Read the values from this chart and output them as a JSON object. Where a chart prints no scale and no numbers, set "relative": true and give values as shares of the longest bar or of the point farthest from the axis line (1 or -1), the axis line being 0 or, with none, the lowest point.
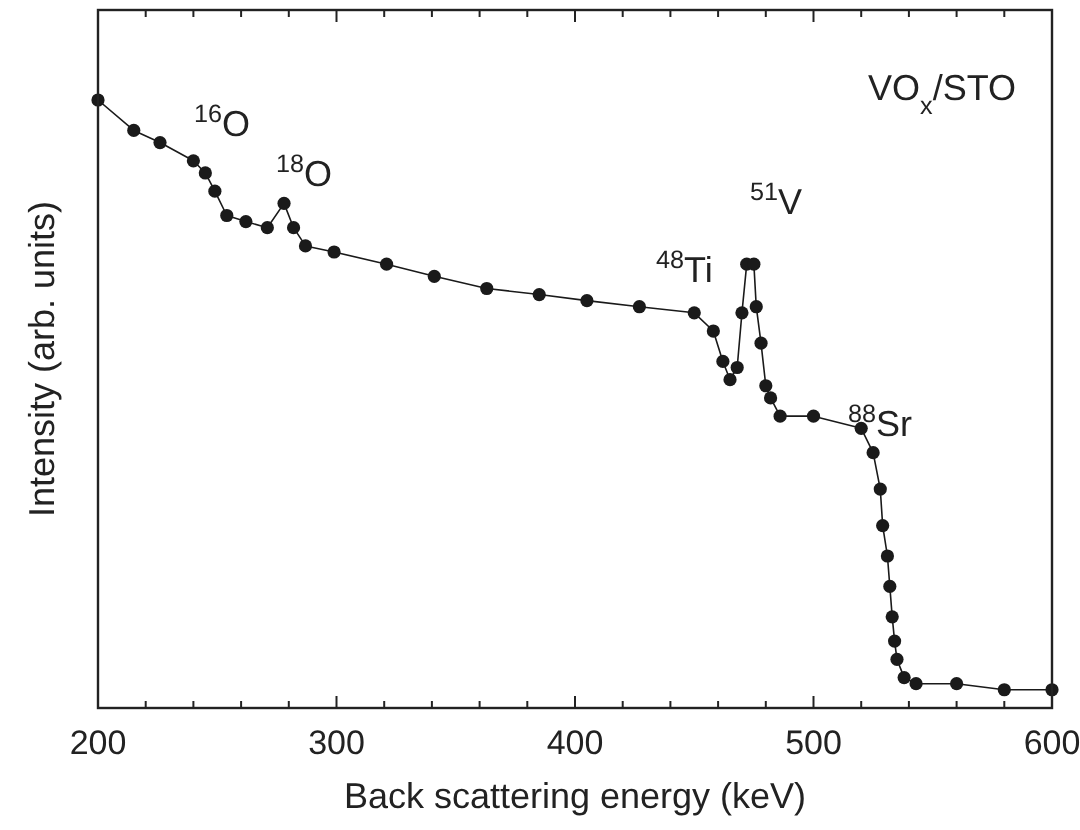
{
  "chart_data": {
    "type": "line",
    "relative": true,
    "xlabel": "Back scattering energy (keV)",
    "ylabel": "Intensity (arb. units)",
    "xlim": [
      200,
      600
    ],
    "xticks": [
      200,
      {
        "value": 220,
        "label": null
      },
      {
        "value": 240,
        "label": null
      },
      {
        "value": 260,
        "label": null
      },
      {
        "value": 280,
        "label": null
      },
      300,
      {
        "value": 320,
        "label": null
      },
      {
        "value": 340,
        "label": null
      },
      {
        "value": 360,
        "label": null
      },
      {
        "value": 380,
        "label": null
      },
      400,
      {
        "value": 420,
        "label": null
      },
      {
        "value": 440,
        "label": null
      },
      {
        "value": 460,
        "label": null
      },
      {
        "value": 480,
        "label": null
      },
      500,
      {
        "value": 520,
        "label": null
      },
      {
        "value": 540,
        "label": null
      },
      {
        "value": 560,
        "label": null
      },
      {
        "value": 580,
        "label": null
      },
      600
    ],
    "marker": "circle",
    "line_style": "solid",
    "series": [
      {
        "color": "#1a1a1a",
        "x": [
          200,
          215,
          226,
          240,
          245,
          249,
          254,
          262,
          271,
          278,
          282,
          287,
          299,
          321,
          341,
          363,
          385,
          405,
          427,
          450,
          458,
          462,
          465,
          468,
          470,
          472,
          475,
          476,
          478,
          480,
          482,
          486,
          500,
          520,
          525,
          528,
          529,
          531,
          532,
          533,
          534,
          535,
          538,
          543,
          560,
          580,
          600
        ],
        "values": [
          1.0,
          0.95,
          0.93,
          0.9,
          0.88,
          0.85,
          0.81,
          0.8,
          0.79,
          0.83,
          0.79,
          0.76,
          0.75,
          0.73,
          0.71,
          0.69,
          0.68,
          0.67,
          0.66,
          0.65,
          0.62,
          0.57,
          0.54,
          0.56,
          0.65,
          0.73,
          0.73,
          0.66,
          0.6,
          0.53,
          0.51,
          0.48,
          0.48,
          0.46,
          0.42,
          0.36,
          0.3,
          0.25,
          0.2,
          0.15,
          0.11,
          0.08,
          0.05,
          0.04,
          0.04,
          0.03,
          0.03
        ]
      }
    ],
    "annotations": [
      "$^{16}$O",
      "$^{18}$O",
      "$^{48}$Ti",
      "$^{51}$V",
      "$^{88}$Sr",
      "VO$_{x}$/STO"
    ]
  }
}
